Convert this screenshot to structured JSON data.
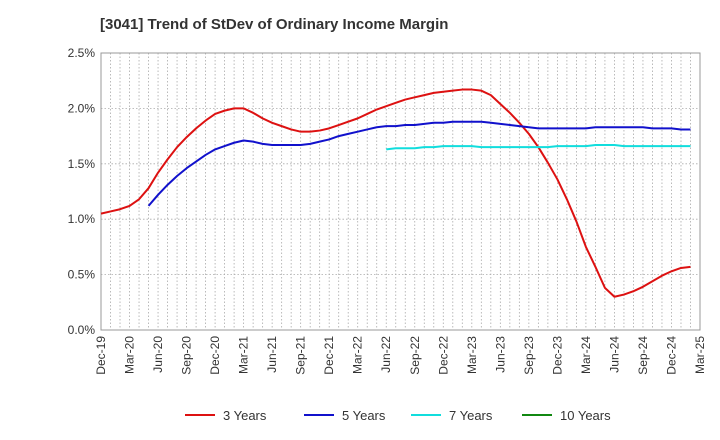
{
  "chart_data": {
    "type": "line",
    "title": "[3041]  Trend of StDev of Ordinary Income Margin",
    "x_tick_labels": [
      "Dec-19",
      "Mar-20",
      "Jun-20",
      "Sep-20",
      "Dec-20",
      "Mar-21",
      "Jun-21",
      "Sep-21",
      "Dec-21",
      "Mar-22",
      "Jun-22",
      "Sep-22",
      "Dec-22",
      "Mar-23",
      "Jun-23",
      "Sep-23",
      "Dec-23",
      "Mar-24",
      "Jun-24",
      "Sep-24",
      "Dec-24",
      "Mar-25"
    ],
    "y_tick_labels": [
      "0.0%",
      "0.5%",
      "1.0%",
      "1.5%",
      "2.0%",
      "2.5%"
    ],
    "ylim": [
      0,
      2.5
    ],
    "y_unit": "%",
    "grid": true,
    "legend_position": "bottom",
    "series": [
      {
        "name": "3 Years",
        "color": "#dd1111",
        "values": [
          {
            "x": "Dec-19",
            "y": 1.05
          },
          {
            "x": "Jan-20",
            "y": 1.07
          },
          {
            "x": "Feb-20",
            "y": 1.09
          },
          {
            "x": "Mar-20",
            "y": 1.12
          },
          {
            "x": "Apr-20",
            "y": 1.18
          },
          {
            "x": "May-20",
            "y": 1.28
          },
          {
            "x": "Jun-20",
            "y": 1.42
          },
          {
            "x": "Jul-20",
            "y": 1.54
          },
          {
            "x": "Aug-20",
            "y": 1.65
          },
          {
            "x": "Sep-20",
            "y": 1.74
          },
          {
            "x": "Oct-20",
            "y": 1.82
          },
          {
            "x": "Nov-20",
            "y": 1.89
          },
          {
            "x": "Dec-20",
            "y": 1.95
          },
          {
            "x": "Jan-21",
            "y": 1.98
          },
          {
            "x": "Feb-21",
            "y": 2.0
          },
          {
            "x": "Mar-21",
            "y": 2.0
          },
          {
            "x": "Apr-21",
            "y": 1.96
          },
          {
            "x": "May-21",
            "y": 1.91
          },
          {
            "x": "Jun-21",
            "y": 1.87
          },
          {
            "x": "Jul-21",
            "y": 1.84
          },
          {
            "x": "Aug-21",
            "y": 1.81
          },
          {
            "x": "Sep-21",
            "y": 1.79
          },
          {
            "x": "Oct-21",
            "y": 1.79
          },
          {
            "x": "Nov-21",
            "y": 1.8
          },
          {
            "x": "Dec-21",
            "y": 1.82
          },
          {
            "x": "Jan-22",
            "y": 1.85
          },
          {
            "x": "Feb-22",
            "y": 1.88
          },
          {
            "x": "Mar-22",
            "y": 1.91
          },
          {
            "x": "Apr-22",
            "y": 1.95
          },
          {
            "x": "May-22",
            "y": 1.99
          },
          {
            "x": "Jun-22",
            "y": 2.02
          },
          {
            "x": "Jul-22",
            "y": 2.05
          },
          {
            "x": "Aug-22",
            "y": 2.08
          },
          {
            "x": "Sep-22",
            "y": 2.1
          },
          {
            "x": "Oct-22",
            "y": 2.12
          },
          {
            "x": "Nov-22",
            "y": 2.14
          },
          {
            "x": "Dec-22",
            "y": 2.15
          },
          {
            "x": "Jan-23",
            "y": 2.16
          },
          {
            "x": "Feb-23",
            "y": 2.17
          },
          {
            "x": "Mar-23",
            "y": 2.17
          },
          {
            "x": "Apr-23",
            "y": 2.16
          },
          {
            "x": "May-23",
            "y": 2.12
          },
          {
            "x": "Jun-23",
            "y": 2.04
          },
          {
            "x": "Jul-23",
            "y": 1.96
          },
          {
            "x": "Aug-23",
            "y": 1.87
          },
          {
            "x": "Sep-23",
            "y": 1.77
          },
          {
            "x": "Oct-23",
            "y": 1.65
          },
          {
            "x": "Nov-23",
            "y": 1.51
          },
          {
            "x": "Dec-23",
            "y": 1.36
          },
          {
            "x": "Jan-24",
            "y": 1.18
          },
          {
            "x": "Feb-24",
            "y": 0.98
          },
          {
            "x": "Mar-24",
            "y": 0.75
          },
          {
            "x": "Apr-24",
            "y": 0.57
          },
          {
            "x": "May-24",
            "y": 0.38
          },
          {
            "x": "Jun-24",
            "y": 0.3
          },
          {
            "x": "Jul-24",
            "y": 0.32
          },
          {
            "x": "Aug-24",
            "y": 0.35
          },
          {
            "x": "Sep-24",
            "y": 0.39
          },
          {
            "x": "Oct-24",
            "y": 0.44
          },
          {
            "x": "Nov-24",
            "y": 0.49
          },
          {
            "x": "Dec-24",
            "y": 0.53
          },
          {
            "x": "Jan-25",
            "y": 0.56
          },
          {
            "x": "Feb-25",
            "y": 0.57
          }
        ]
      },
      {
        "name": "5 Years",
        "color": "#1111cc",
        "values": [
          {
            "x": "May-20",
            "y": 1.12
          },
          {
            "x": "Jun-20",
            "y": 1.22
          },
          {
            "x": "Jul-20",
            "y": 1.31
          },
          {
            "x": "Aug-20",
            "y": 1.39
          },
          {
            "x": "Sep-20",
            "y": 1.46
          },
          {
            "x": "Oct-20",
            "y": 1.52
          },
          {
            "x": "Nov-20",
            "y": 1.58
          },
          {
            "x": "Dec-20",
            "y": 1.63
          },
          {
            "x": "Jan-21",
            "y": 1.66
          },
          {
            "x": "Feb-21",
            "y": 1.69
          },
          {
            "x": "Mar-21",
            "y": 1.71
          },
          {
            "x": "Apr-21",
            "y": 1.7
          },
          {
            "x": "May-21",
            "y": 1.68
          },
          {
            "x": "Jun-21",
            "y": 1.67
          },
          {
            "x": "Jul-21",
            "y": 1.67
          },
          {
            "x": "Aug-21",
            "y": 1.67
          },
          {
            "x": "Sep-21",
            "y": 1.67
          },
          {
            "x": "Oct-21",
            "y": 1.68
          },
          {
            "x": "Nov-21",
            "y": 1.7
          },
          {
            "x": "Dec-21",
            "y": 1.72
          },
          {
            "x": "Jan-22",
            "y": 1.75
          },
          {
            "x": "Feb-22",
            "y": 1.77
          },
          {
            "x": "Mar-22",
            "y": 1.79
          },
          {
            "x": "Apr-22",
            "y": 1.81
          },
          {
            "x": "May-22",
            "y": 1.83
          },
          {
            "x": "Jun-22",
            "y": 1.84
          },
          {
            "x": "Jul-22",
            "y": 1.84
          },
          {
            "x": "Aug-22",
            "y": 1.85
          },
          {
            "x": "Sep-22",
            "y": 1.85
          },
          {
            "x": "Oct-22",
            "y": 1.86
          },
          {
            "x": "Nov-22",
            "y": 1.87
          },
          {
            "x": "Dec-22",
            "y": 1.87
          },
          {
            "x": "Jan-23",
            "y": 1.88
          },
          {
            "x": "Feb-23",
            "y": 1.88
          },
          {
            "x": "Mar-23",
            "y": 1.88
          },
          {
            "x": "Apr-23",
            "y": 1.88
          },
          {
            "x": "May-23",
            "y": 1.87
          },
          {
            "x": "Jun-23",
            "y": 1.86
          },
          {
            "x": "Jul-23",
            "y": 1.85
          },
          {
            "x": "Aug-23",
            "y": 1.84
          },
          {
            "x": "Sep-23",
            "y": 1.83
          },
          {
            "x": "Oct-23",
            "y": 1.82
          },
          {
            "x": "Nov-23",
            "y": 1.82
          },
          {
            "x": "Dec-23",
            "y": 1.82
          },
          {
            "x": "Jan-24",
            "y": 1.82
          },
          {
            "x": "Feb-24",
            "y": 1.82
          },
          {
            "x": "Mar-24",
            "y": 1.82
          },
          {
            "x": "Apr-24",
            "y": 1.83
          },
          {
            "x": "May-24",
            "y": 1.83
          },
          {
            "x": "Jun-24",
            "y": 1.83
          },
          {
            "x": "Jul-24",
            "y": 1.83
          },
          {
            "x": "Aug-24",
            "y": 1.83
          },
          {
            "x": "Sep-24",
            "y": 1.83
          },
          {
            "x": "Oct-24",
            "y": 1.82
          },
          {
            "x": "Nov-24",
            "y": 1.82
          },
          {
            "x": "Dec-24",
            "y": 1.82
          },
          {
            "x": "Jan-25",
            "y": 1.81
          },
          {
            "x": "Feb-25",
            "y": 1.81
          }
        ]
      },
      {
        "name": "7 Years",
        "color": "#11dddd",
        "values": [
          {
            "x": "Jun-22",
            "y": 1.63
          },
          {
            "x": "Jul-22",
            "y": 1.64
          },
          {
            "x": "Aug-22",
            "y": 1.64
          },
          {
            "x": "Sep-22",
            "y": 1.64
          },
          {
            "x": "Oct-22",
            "y": 1.65
          },
          {
            "x": "Nov-22",
            "y": 1.65
          },
          {
            "x": "Dec-22",
            "y": 1.66
          },
          {
            "x": "Jan-23",
            "y": 1.66
          },
          {
            "x": "Feb-23",
            "y": 1.66
          },
          {
            "x": "Mar-23",
            "y": 1.66
          },
          {
            "x": "Apr-23",
            "y": 1.65
          },
          {
            "x": "May-23",
            "y": 1.65
          },
          {
            "x": "Jun-23",
            "y": 1.65
          },
          {
            "x": "Jul-23",
            "y": 1.65
          },
          {
            "x": "Aug-23",
            "y": 1.65
          },
          {
            "x": "Sep-23",
            "y": 1.65
          },
          {
            "x": "Oct-23",
            "y": 1.65
          },
          {
            "x": "Nov-23",
            "y": 1.65
          },
          {
            "x": "Dec-23",
            "y": 1.66
          },
          {
            "x": "Jan-24",
            "y": 1.66
          },
          {
            "x": "Feb-24",
            "y": 1.66
          },
          {
            "x": "Mar-24",
            "y": 1.66
          },
          {
            "x": "Apr-24",
            "y": 1.67
          },
          {
            "x": "May-24",
            "y": 1.67
          },
          {
            "x": "Jun-24",
            "y": 1.67
          },
          {
            "x": "Jul-24",
            "y": 1.66
          },
          {
            "x": "Aug-24",
            "y": 1.66
          },
          {
            "x": "Sep-24",
            "y": 1.66
          },
          {
            "x": "Oct-24",
            "y": 1.66
          },
          {
            "x": "Nov-24",
            "y": 1.66
          },
          {
            "x": "Dec-24",
            "y": 1.66
          },
          {
            "x": "Jan-25",
            "y": 1.66
          },
          {
            "x": "Feb-25",
            "y": 1.66
          }
        ]
      },
      {
        "name": "10 Years",
        "color": "#118811",
        "values": []
      }
    ]
  }
}
